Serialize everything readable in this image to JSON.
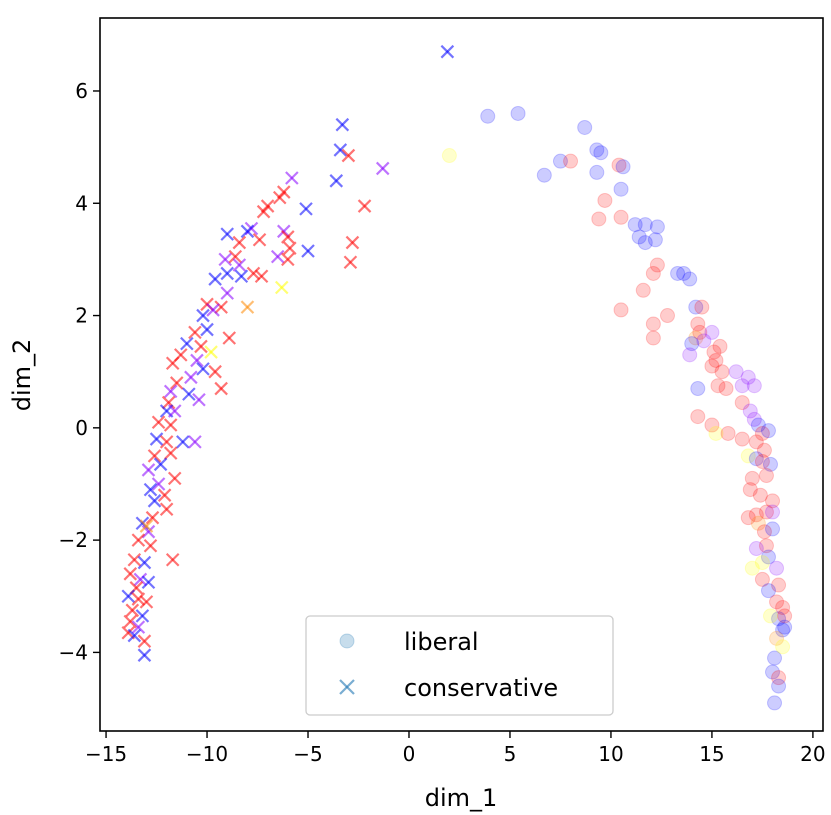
{
  "chart_data": {
    "type": "scatter",
    "title": "",
    "xlabel": "dim_1",
    "ylabel": "dim_2",
    "xlim": [
      -15.3,
      20.5
    ],
    "ylim": [
      -5.4,
      7.3
    ],
    "xticks": [
      -15,
      -10,
      -5,
      0,
      5,
      10,
      15,
      20
    ],
    "xtick_labels": [
      "−15",
      "−10",
      "−5",
      "0",
      "5",
      "10",
      "15",
      "20"
    ],
    "yticks": [
      -4,
      -2,
      0,
      2,
      4,
      6
    ],
    "ytick_labels": [
      "−4",
      "−2",
      "0",
      "2",
      "4",
      "6"
    ],
    "grid": false,
    "legend_position": "bottom-center",
    "colors": {
      "red": "#ff0000",
      "blue": "#0000ff",
      "purple": "#8800ff",
      "yellow": "#ffff00",
      "orange": "#ff8800",
      "legend_marker": "#1f77b4"
    },
    "series": [
      {
        "name": "liberal",
        "marker": "circle",
        "points": [
          [
            3.9,
            5.55,
            "blue"
          ],
          [
            5.4,
            5.6,
            "blue"
          ],
          [
            8.7,
            5.35,
            "blue"
          ],
          [
            9.3,
            4.95,
            "blue"
          ],
          [
            9.5,
            4.9,
            "blue"
          ],
          [
            7.5,
            4.75,
            "blue"
          ],
          [
            6.7,
            4.5,
            "blue"
          ],
          [
            8.0,
            4.75,
            "red"
          ],
          [
            9.3,
            4.55,
            "blue"
          ],
          [
            10.4,
            4.68,
            "red"
          ],
          [
            10.6,
            4.65,
            "blue"
          ],
          [
            9.7,
            4.05,
            "red"
          ],
          [
            10.5,
            4.25,
            "blue"
          ],
          [
            9.4,
            3.72,
            "red"
          ],
          [
            10.5,
            3.75,
            "red"
          ],
          [
            11.2,
            3.62,
            "blue"
          ],
          [
            11.4,
            3.4,
            "blue"
          ],
          [
            11.7,
            3.3,
            "blue"
          ],
          [
            11.7,
            3.62,
            "blue"
          ],
          [
            12.3,
            3.58,
            "blue"
          ],
          [
            12.2,
            3.35,
            "blue"
          ],
          [
            12.3,
            2.9,
            "red"
          ],
          [
            12.1,
            2.75,
            "red"
          ],
          [
            13.3,
            2.75,
            "blue"
          ],
          [
            13.9,
            2.65,
            "blue"
          ],
          [
            13.6,
            2.75,
            "blue"
          ],
          [
            11.6,
            2.45,
            "red"
          ],
          [
            14.2,
            2.15,
            "blue"
          ],
          [
            14.5,
            2.15,
            "red"
          ],
          [
            10.5,
            2.1,
            "red"
          ],
          [
            12.8,
            2.0,
            "red"
          ],
          [
            12.1,
            1.85,
            "red"
          ],
          [
            14.3,
            1.85,
            "red"
          ],
          [
            14.4,
            1.7,
            "red"
          ],
          [
            14.2,
            1.6,
            "orange"
          ],
          [
            14.6,
            1.55,
            "purple"
          ],
          [
            15.0,
            1.7,
            "purple"
          ],
          [
            15.1,
            1.35,
            "red"
          ],
          [
            12.1,
            1.6,
            "red"
          ],
          [
            14.0,
            1.5,
            "blue"
          ],
          [
            15.4,
            1.45,
            "red"
          ],
          [
            15.2,
            1.2,
            "red"
          ],
          [
            13.9,
            1.3,
            "purple"
          ],
          [
            15.0,
            1.1,
            "red"
          ],
          [
            15.5,
            1.0,
            "red"
          ],
          [
            16.2,
            1.0,
            "purple"
          ],
          [
            16.5,
            0.75,
            "purple"
          ],
          [
            16.8,
            0.9,
            "purple"
          ],
          [
            17.1,
            0.75,
            "purple"
          ],
          [
            15.3,
            0.75,
            "red"
          ],
          [
            14.3,
            0.7,
            "blue"
          ],
          [
            15.7,
            0.7,
            "red"
          ],
          [
            16.5,
            0.45,
            "red"
          ],
          [
            16.9,
            0.3,
            "purple"
          ],
          [
            17.1,
            0.15,
            "purple"
          ],
          [
            14.3,
            0.2,
            "red"
          ],
          [
            15.0,
            0.05,
            "red"
          ],
          [
            17.3,
            0.05,
            "blue"
          ],
          [
            15.2,
            -0.1,
            "yellow"
          ],
          [
            15.8,
            -0.1,
            "red"
          ],
          [
            16.5,
            -0.2,
            "red"
          ],
          [
            17.2,
            -0.25,
            "red"
          ],
          [
            17.5,
            -0.1,
            "red"
          ],
          [
            17.8,
            -0.05,
            "blue"
          ],
          [
            17.6,
            -0.4,
            "red"
          ],
          [
            16.8,
            -0.5,
            "yellow"
          ],
          [
            17.2,
            -0.55,
            "blue"
          ],
          [
            17.5,
            -0.6,
            "red"
          ],
          [
            17.9,
            -0.65,
            "blue"
          ],
          [
            17.7,
            -0.85,
            "red"
          ],
          [
            17.0,
            -0.9,
            "red"
          ],
          [
            16.9,
            -1.1,
            "red"
          ],
          [
            17.4,
            -1.2,
            "red"
          ],
          [
            18.0,
            -1.3,
            "red"
          ],
          [
            17.7,
            -1.5,
            "red"
          ],
          [
            17.2,
            -1.55,
            "red"
          ],
          [
            16.8,
            -1.6,
            "red"
          ],
          [
            18.0,
            -1.5,
            "purple"
          ],
          [
            17.3,
            -1.7,
            "orange"
          ],
          [
            17.6,
            -1.85,
            "red"
          ],
          [
            18.0,
            -1.8,
            "blue"
          ],
          [
            17.7,
            -2.1,
            "red"
          ],
          [
            17.2,
            -2.15,
            "purple"
          ],
          [
            17.8,
            -2.3,
            "blue"
          ],
          [
            17.5,
            -2.4,
            "yellow"
          ],
          [
            17.0,
            -2.5,
            "yellow"
          ],
          [
            18.2,
            -2.5,
            "purple"
          ],
          [
            17.5,
            -2.7,
            "red"
          ],
          [
            18.3,
            -2.8,
            "red"
          ],
          [
            17.8,
            -2.9,
            "blue"
          ],
          [
            18.2,
            -3.1,
            "red"
          ],
          [
            18.5,
            -3.2,
            "red"
          ],
          [
            18.3,
            -3.4,
            "blue"
          ],
          [
            18.6,
            -3.35,
            "red"
          ],
          [
            17.9,
            -3.35,
            "yellow"
          ],
          [
            18.5,
            -3.6,
            "blue"
          ],
          [
            18.2,
            -3.75,
            "orange"
          ],
          [
            18.6,
            -3.55,
            "blue"
          ],
          [
            18.1,
            -4.1,
            "blue"
          ],
          [
            18.5,
            -3.9,
            "yellow"
          ],
          [
            18.0,
            -4.35,
            "blue"
          ],
          [
            18.3,
            -4.45,
            "red"
          ],
          [
            18.3,
            -4.6,
            "blue"
          ],
          [
            18.1,
            -4.9,
            "blue"
          ],
          [
            2.0,
            4.85,
            "yellow"
          ]
        ]
      },
      {
        "name": "conservative",
        "marker": "x",
        "points": [
          [
            1.9,
            6.7,
            "blue"
          ],
          [
            -3.3,
            5.4,
            "blue"
          ],
          [
            -3.4,
            4.95,
            "blue"
          ],
          [
            -3.0,
            4.85,
            "red"
          ],
          [
            -1.3,
            4.62,
            "purple"
          ],
          [
            -3.6,
            4.4,
            "blue"
          ],
          [
            -5.8,
            4.45,
            "purple"
          ],
          [
            -6.2,
            4.2,
            "red"
          ],
          [
            -6.4,
            4.1,
            "red"
          ],
          [
            -7.0,
            3.95,
            "red"
          ],
          [
            -5.1,
            3.9,
            "blue"
          ],
          [
            -2.2,
            3.95,
            "red"
          ],
          [
            -7.2,
            3.85,
            "red"
          ],
          [
            -7.8,
            3.55,
            "purple"
          ],
          [
            -8.0,
            3.5,
            "blue"
          ],
          [
            -7.4,
            3.35,
            "red"
          ],
          [
            -9.0,
            3.45,
            "blue"
          ],
          [
            -6.2,
            3.5,
            "purple"
          ],
          [
            -6.0,
            3.4,
            "red"
          ],
          [
            -8.4,
            3.3,
            "red"
          ],
          [
            -2.8,
            3.3,
            "red"
          ],
          [
            -5.9,
            3.2,
            "red"
          ],
          [
            -5.0,
            3.15,
            "blue"
          ],
          [
            -6.5,
            3.05,
            "purple"
          ],
          [
            -9.1,
            3.0,
            "purple"
          ],
          [
            -8.6,
            3.05,
            "red"
          ],
          [
            -8.4,
            2.9,
            "purple"
          ],
          [
            -2.9,
            2.95,
            "red"
          ],
          [
            -6.0,
            3.0,
            "red"
          ],
          [
            -9.0,
            2.75,
            "blue"
          ],
          [
            -7.7,
            2.75,
            "red"
          ],
          [
            -8.3,
            2.7,
            "blue"
          ],
          [
            -7.3,
            2.7,
            "red"
          ],
          [
            -9.6,
            2.65,
            "blue"
          ],
          [
            -6.3,
            2.5,
            "yellow"
          ],
          [
            -9.0,
            2.4,
            "purple"
          ],
          [
            -8.0,
            2.15,
            "orange"
          ],
          [
            -10.0,
            2.2,
            "red"
          ],
          [
            -9.3,
            2.15,
            "red"
          ],
          [
            -10.2,
            2.0,
            "blue"
          ],
          [
            -9.7,
            2.1,
            "purple"
          ],
          [
            -10.6,
            1.7,
            "red"
          ],
          [
            -10.0,
            1.75,
            "blue"
          ],
          [
            -10.3,
            1.45,
            "red"
          ],
          [
            -8.9,
            1.6,
            "red"
          ],
          [
            -9.8,
            1.35,
            "yellow"
          ],
          [
            -11.0,
            1.5,
            "blue"
          ],
          [
            -11.3,
            1.3,
            "red"
          ],
          [
            -10.5,
            1.2,
            "purple"
          ],
          [
            -11.7,
            1.15,
            "red"
          ],
          [
            -10.2,
            1.05,
            "blue"
          ],
          [
            -10.8,
            0.9,
            "purple"
          ],
          [
            -9.6,
            1.0,
            "red"
          ],
          [
            -11.5,
            0.8,
            "red"
          ],
          [
            -11.8,
            0.65,
            "purple"
          ],
          [
            -10.9,
            0.6,
            "blue"
          ],
          [
            -11.9,
            0.45,
            "red"
          ],
          [
            -10.4,
            0.5,
            "purple"
          ],
          [
            -9.3,
            0.7,
            "red"
          ],
          [
            -12.0,
            0.3,
            "blue"
          ],
          [
            -11.6,
            0.3,
            "purple"
          ],
          [
            -12.4,
            0.1,
            "red"
          ],
          [
            -11.8,
            0.05,
            "red"
          ],
          [
            -12.5,
            -0.2,
            "blue"
          ],
          [
            -12.0,
            -0.25,
            "red"
          ],
          [
            -11.2,
            -0.25,
            "blue"
          ],
          [
            -10.6,
            -0.25,
            "purple"
          ],
          [
            -12.6,
            -0.5,
            "red"
          ],
          [
            -11.8,
            -0.45,
            "red"
          ],
          [
            -12.3,
            -0.65,
            "blue"
          ],
          [
            -12.9,
            -0.75,
            "purple"
          ],
          [
            -11.6,
            -0.9,
            "red"
          ],
          [
            -12.4,
            -1.0,
            "purple"
          ],
          [
            -12.8,
            -1.1,
            "blue"
          ],
          [
            -12.1,
            -1.2,
            "red"
          ],
          [
            -12.6,
            -1.3,
            "blue"
          ],
          [
            -12.0,
            -1.45,
            "red"
          ],
          [
            -12.7,
            -1.6,
            "red"
          ],
          [
            -13.2,
            -1.7,
            "blue"
          ],
          [
            -12.9,
            -1.85,
            "purple"
          ],
          [
            -13.0,
            -1.75,
            "orange"
          ],
          [
            -13.4,
            -2.0,
            "red"
          ],
          [
            -12.8,
            -2.1,
            "red"
          ],
          [
            -11.7,
            -2.35,
            "red"
          ],
          [
            -13.6,
            -2.35,
            "red"
          ],
          [
            -13.1,
            -2.4,
            "blue"
          ],
          [
            -13.8,
            -2.6,
            "red"
          ],
          [
            -13.3,
            -2.7,
            "purple"
          ],
          [
            -12.9,
            -2.75,
            "blue"
          ],
          [
            -13.5,
            -2.85,
            "red"
          ],
          [
            -13.9,
            -3.0,
            "blue"
          ],
          [
            -13.4,
            -3.05,
            "red"
          ],
          [
            -13.0,
            -3.1,
            "red"
          ],
          [
            -13.7,
            -3.25,
            "red"
          ],
          [
            -13.2,
            -3.35,
            "blue"
          ],
          [
            -13.8,
            -3.45,
            "red"
          ],
          [
            -13.4,
            -3.55,
            "purple"
          ],
          [
            -13.9,
            -3.65,
            "red"
          ],
          [
            -13.6,
            -3.7,
            "blue"
          ],
          [
            -13.1,
            -3.8,
            "red"
          ],
          [
            -13.1,
            -4.05,
            "blue"
          ]
        ]
      }
    ],
    "legend": [
      {
        "label": "liberal",
        "marker": "circle"
      },
      {
        "label": "conservative",
        "marker": "x"
      }
    ]
  }
}
